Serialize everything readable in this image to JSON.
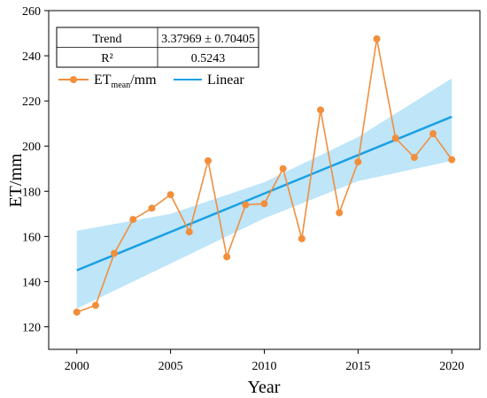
{
  "chart_data": {
    "type": "line",
    "xlabel": "Year",
    "ylabel": "ET/mm",
    "xlim": [
      1998.5,
      2021.5
    ],
    "ylim": [
      110,
      260
    ],
    "xticks": [
      "2000",
      "2005",
      "2010",
      "2015",
      "2020"
    ],
    "xtick_values": [
      2000,
      2005,
      2010,
      2015,
      2020
    ],
    "yticks": [
      "120",
      "140",
      "160",
      "180",
      "200",
      "220",
      "240",
      "260"
    ],
    "ytick_values": [
      120,
      140,
      160,
      180,
      200,
      220,
      240,
      260
    ],
    "grid": false,
    "colors": {
      "series": "#f28e3c",
      "linear": "#1aa0e3",
      "band": "#b3e0f7",
      "inner_line": "#c49a7a"
    },
    "stats_table": [
      {
        "label": "Trend",
        "value": "3.37969 ± 0.70405"
      },
      {
        "label": "R²",
        "value": "0.5243"
      }
    ],
    "legend": {
      "position": "top-left",
      "series_main": "ET",
      "series_sub": "mean",
      "series_suffix": "/mm",
      "linear_label": "Linear"
    },
    "series": [
      {
        "name": "ETmean/mm",
        "x": [
          2000,
          2001,
          2002,
          2003,
          2004,
          2005,
          2006,
          2007,
          2008,
          2009,
          2010,
          2011,
          2012,
          2013,
          2014,
          2015,
          2016,
          2017,
          2018,
          2019,
          2020
        ],
        "values": [
          126.5,
          129.5,
          152.5,
          167.5,
          172.5,
          178.5,
          162,
          193.5,
          151,
          174,
          174.5,
          190,
          159,
          216,
          170.5,
          193,
          247.5,
          203.5,
          195,
          205.5,
          194
        ]
      }
    ],
    "linear": {
      "x": [
        2000,
        2020
      ],
      "y": [
        145,
        213
      ]
    },
    "confidence_band": {
      "x": [
        2000,
        2005,
        2010,
        2015,
        2020
      ],
      "upper": [
        162.5,
        170,
        184,
        204,
        230
      ],
      "lower": [
        128,
        148,
        168,
        184.5,
        193.5
      ]
    }
  }
}
